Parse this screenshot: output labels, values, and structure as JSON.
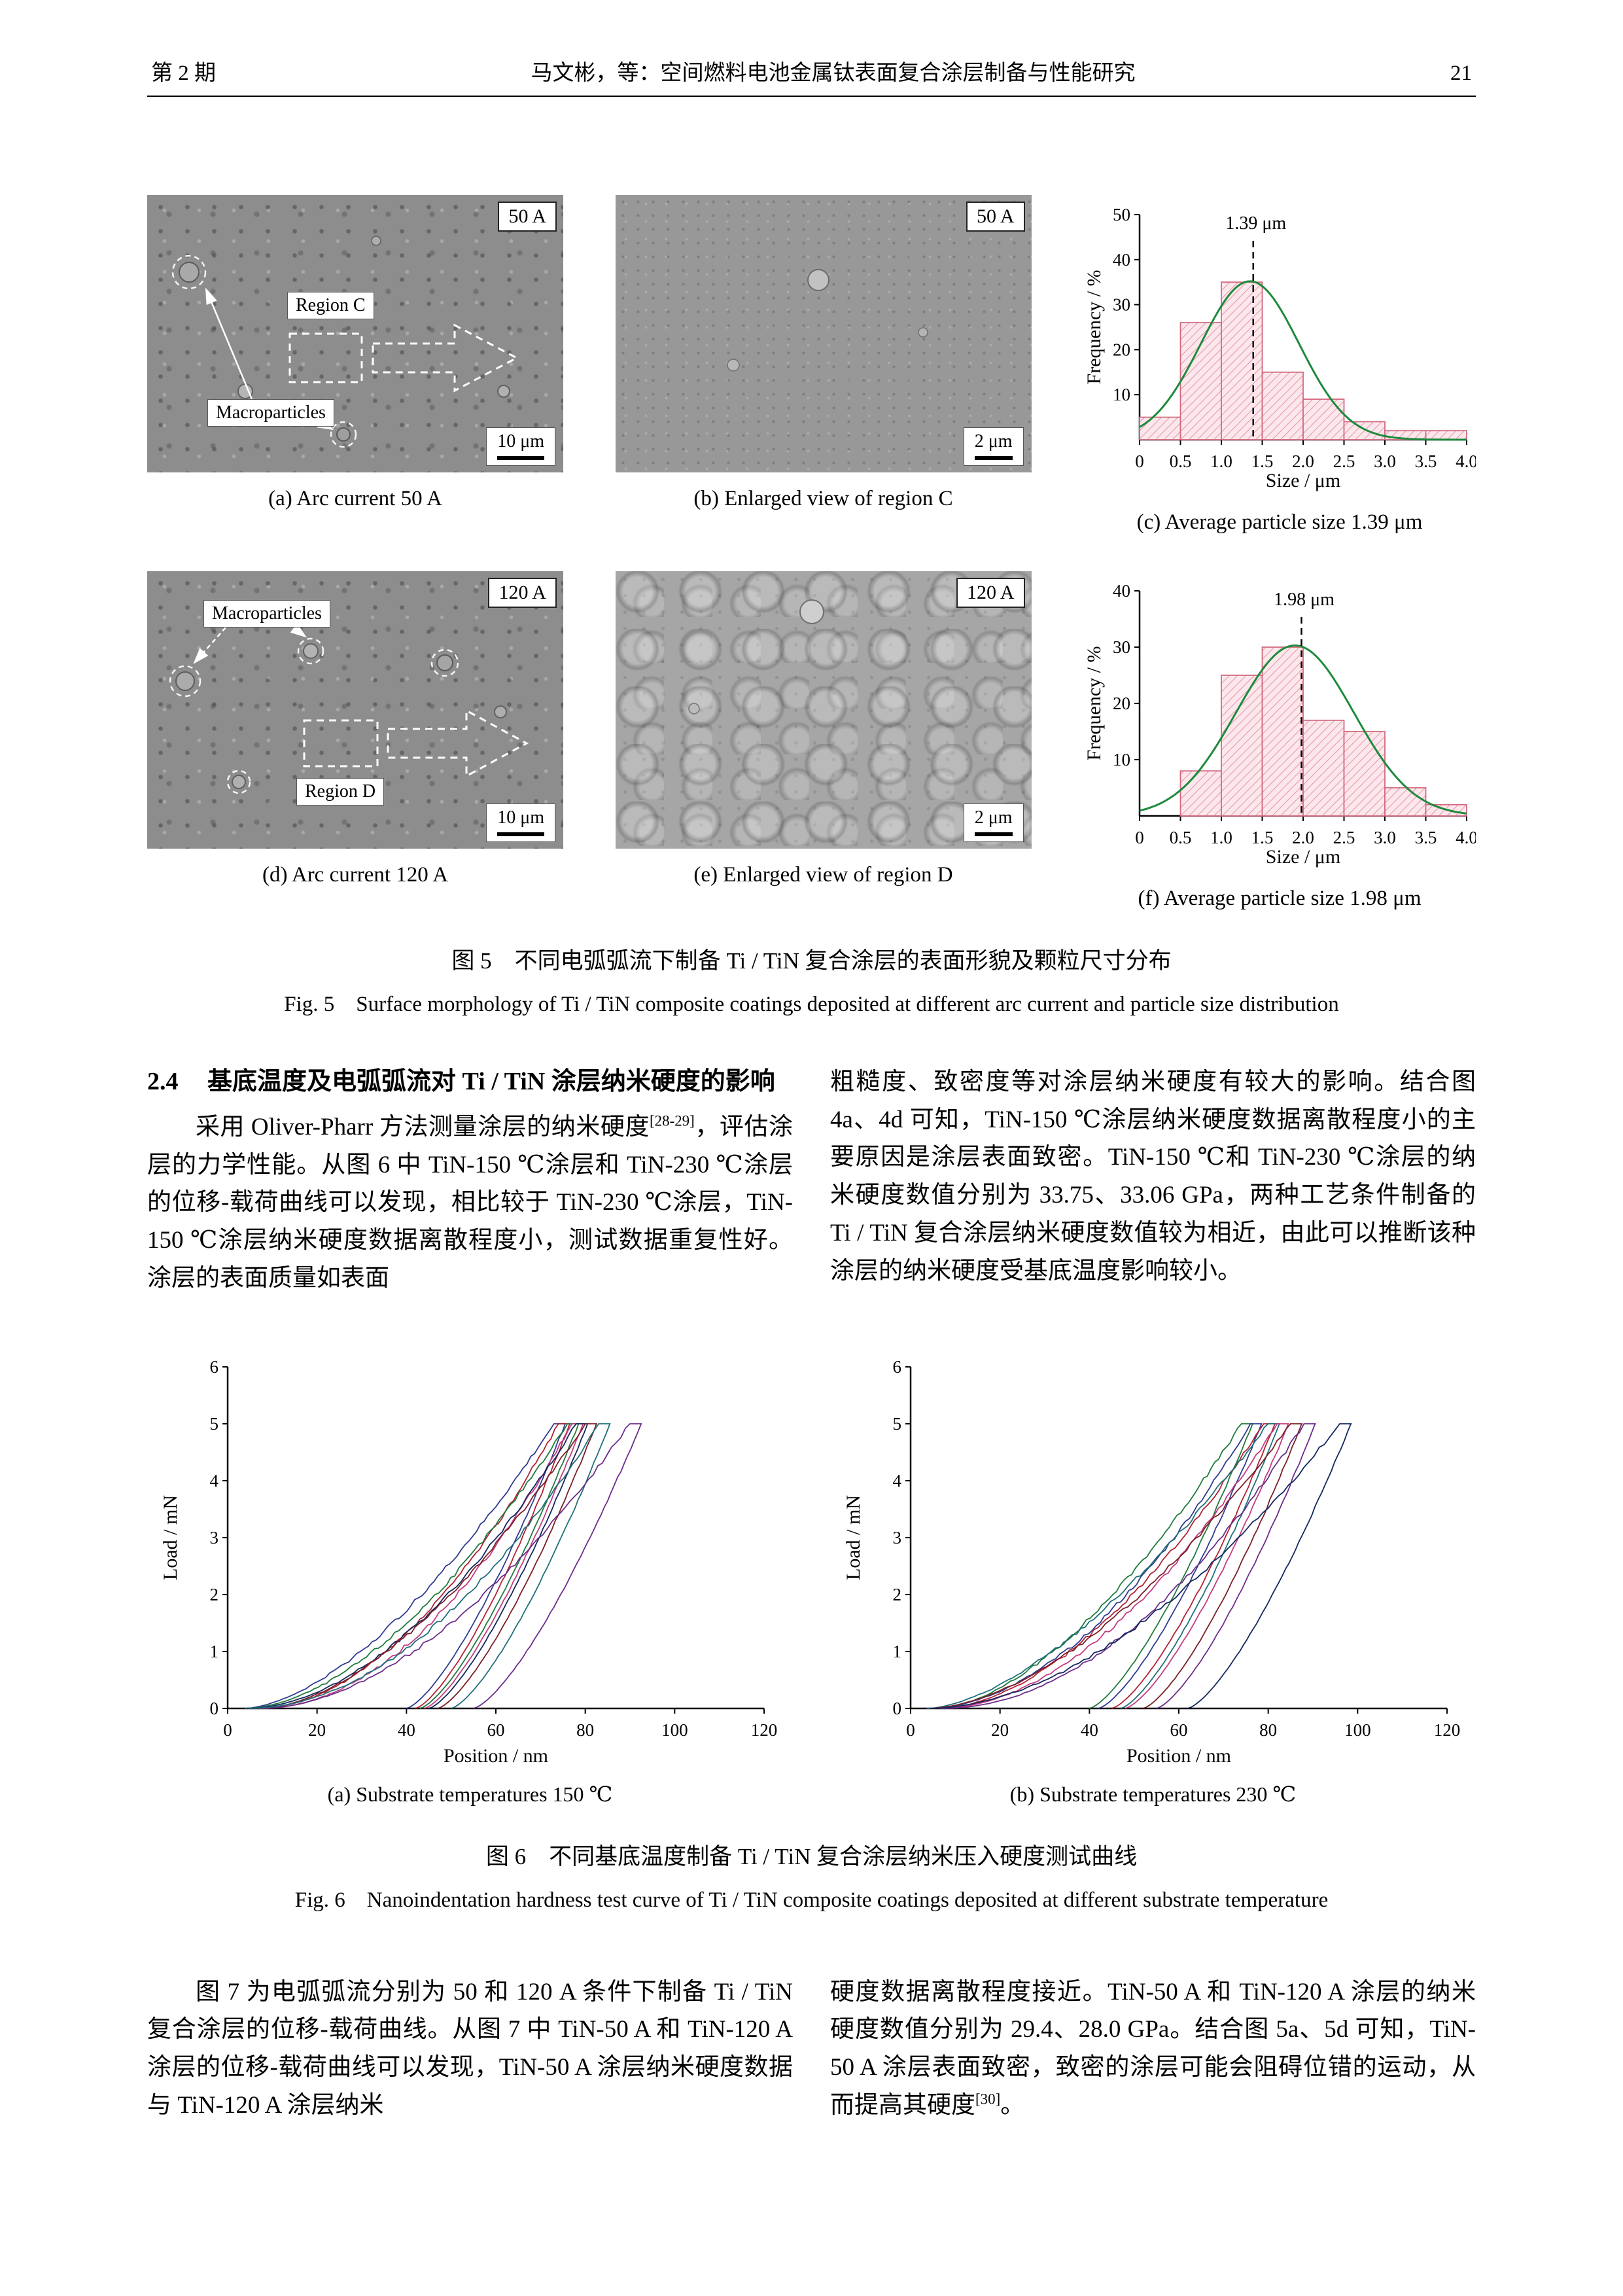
{
  "header": {
    "issue": "第 2 期",
    "title": "马文彬，等：空间燃料电池金属钛表面复合涂层制备与性能研究",
    "page": "21"
  },
  "fig5": {
    "a": {
      "tag": "50 A",
      "region": "Region C",
      "macro": "Macroparticles",
      "scale": "10 μm",
      "caption": "(a) Arc current 50 A"
    },
    "b": {
      "tag": "50 A",
      "scale": "2 μm",
      "caption": "(b) Enlarged view of region C"
    },
    "c": {
      "caption": "(c) Average particle size 1.39 μm"
    },
    "d": {
      "tag": "120 A",
      "region": "Region D",
      "macro": "Macroparticles",
      "scale": "10 μm",
      "caption": "(d) Arc current 120 A"
    },
    "e": {
      "tag": "120 A",
      "scale": "2 μm",
      "caption": "(e) Enlarged view of region D"
    },
    "f": {
      "caption": "(f) Average particle size 1.98 μm"
    },
    "caption_zh": "图 5　不同电弧弧流下制备 Ti / TiN 复合涂层的表面形貌及颗粒尺寸分布",
    "caption_en": "Fig. 5　Surface morphology of Ti / TiN composite coatings deposited at different arc current and particle size distribution"
  },
  "section24": {
    "num": "2.4",
    "title": "基底温度及电弧弧流对 Ti / TiN 涂层纳米硬度的影响"
  },
  "paras": {
    "p1": [
      {
        "t": "采用 Oliver-Pharr 方法测量涂层的纳米硬度"
      },
      {
        "t": "[28-29]",
        "sup": true
      },
      {
        "t": "，评估涂层的力学性能。从图 6 中 TiN-150 ℃涂层和 TiN-230 ℃涂层的位移-载荷曲线可以发现，相比较于 TiN-230 ℃涂层，TiN-150 ℃涂层纳米硬度数据离散程度小，测试数据重复性好。涂层的表面质量如表面"
      }
    ],
    "p2": [
      {
        "t": "粗糙度、致密度等对涂层纳米硬度有较大的影响。结合图 4a、4d 可知，TiN-150 ℃涂层纳米硬度数据离散程度小的主要原因是涂层表面致密。TiN-150 ℃和 TiN-230 ℃涂层的纳米硬度数值分别为 33.75、33.06 GPa，两种工艺条件制备的 Ti / TiN 复合涂层纳米硬度数值较为相近，由此可以推断该种涂层的纳米硬度受基底温度影响较小。"
      }
    ],
    "p3": [
      {
        "t": "图 7 为电弧弧流分别为 50 和 120 A 条件下制备 Ti / TiN 复合涂层的位移-载荷曲线。从图 7 中 TiN-50 A 和 TiN-120 A 涂层的位移-载荷曲线可以发现，TiN-50 A 涂层纳米硬度数据与 TiN-120 A 涂层纳米"
      }
    ],
    "p4": [
      {
        "t": "硬度数据离散程度接近。TiN-50 A 和 TiN-120 A 涂层的纳米硬度数值分别为 29.4、28.0 GPa。结合图 5a、5d 可知，TiN-50 A 涂层表面致密，致密的涂层可能会阻碍位错的运动，从而提高其硬度"
      },
      {
        "t": "[30]",
        "sup": true
      },
      {
        "t": "。"
      }
    ]
  },
  "fig6": {
    "a_caption": "(a) Substrate temperatures 150 ℃",
    "b_caption": "(b) Substrate temperatures 230 ℃",
    "caption_zh": "图 6　不同基底温度制备 Ti / TiN 复合涂层纳米压入硬度测试曲线",
    "caption_en": "Fig. 6　Nanoindentation hardness test curve of Ti / TiN composite coatings deposited at different substrate temperature"
  },
  "colors": {
    "hist_fill": "#fce8ec",
    "hist_hatch": "#e79aab",
    "hist_edge": "#d16a80",
    "curve_green": "#1d8a3c"
  },
  "chart_data": [
    {
      "id": "hist-139",
      "type": "bar",
      "annotation": "1.39 μm",
      "mean": 1.39,
      "bin_width": 0.5,
      "bin_starts": [
        0,
        0.5,
        1.0,
        1.5,
        2.0,
        2.5,
        3.0,
        3.5
      ],
      "values": [
        5,
        26,
        35,
        15,
        9,
        4,
        2,
        2
      ],
      "curve": {
        "type": "gaussian",
        "mu": 1.35,
        "sigma": 0.6,
        "amp": 35.2
      },
      "xlabel": "Size / μm",
      "ylabel": "Frequency / %",
      "xlim": [
        0,
        4.0
      ],
      "ylim": [
        0,
        50
      ],
      "xticks": [
        0,
        0.5,
        1.0,
        1.5,
        2.0,
        2.5,
        3.0,
        3.5,
        4.0
      ],
      "yticks": [
        10,
        20,
        30,
        40,
        50
      ]
    },
    {
      "id": "hist-198",
      "type": "bar",
      "annotation": "1.98 μm",
      "mean": 1.98,
      "bin_width": 0.5,
      "bin_starts": [
        0,
        0.5,
        1.0,
        1.5,
        2.0,
        2.5,
        3.0,
        3.5
      ],
      "values": [
        0,
        8,
        25,
        30,
        17,
        15,
        5,
        2
      ],
      "curve": {
        "type": "gaussian",
        "mu": 1.9,
        "sigma": 0.72,
        "amp": 30.3
      },
      "xlabel": "Size / μm",
      "ylabel": "Frequency / %",
      "xlim": [
        0,
        4.0
      ],
      "ylim": [
        0,
        40
      ],
      "xticks": [
        0,
        0.5,
        1.0,
        1.5,
        2.0,
        2.5,
        3.0,
        3.5,
        4.0
      ],
      "yticks": [
        10,
        20,
        30,
        40
      ]
    },
    {
      "id": "load-150",
      "type": "line",
      "xlabel": "Position / nm",
      "ylabel": "Load / mN",
      "xlim": [
        0,
        120
      ],
      "ylim": [
        0,
        6
      ],
      "xticks": [
        0,
        20,
        40,
        60,
        80,
        100,
        120
      ],
      "yticks": [
        0,
        1,
        2,
        3,
        4,
        5,
        6
      ],
      "peak_load_mN": 5,
      "series": [
        {
          "color": "#2f3b8f",
          "max_nm": 73,
          "residual_nm": 40
        },
        {
          "color": "#b22234",
          "max_nm": 74,
          "residual_nm": 42
        },
        {
          "color": "#1f7a3c",
          "max_nm": 76,
          "residual_nm": 43
        },
        {
          "color": "#c23b80",
          "max_nm": 77,
          "residual_nm": 44
        },
        {
          "color": "#13275e",
          "max_nm": 78,
          "residual_nm": 45
        },
        {
          "color": "#7a1f28",
          "max_nm": 80,
          "residual_nm": 47
        },
        {
          "color": "#1f6f7a",
          "max_nm": 83,
          "residual_nm": 50
        },
        {
          "color": "#6b2d8b",
          "max_nm": 90,
          "residual_nm": 55
        }
      ]
    },
    {
      "id": "load-230",
      "type": "line",
      "xlabel": "Position / nm",
      "ylabel": "Load / mN",
      "xlim": [
        0,
        120
      ],
      "ylim": [
        0,
        6
      ],
      "xticks": [
        0,
        20,
        40,
        60,
        80,
        100,
        120
      ],
      "yticks": [
        0,
        1,
        2,
        3,
        4,
        5,
        6
      ],
      "peak_load_mN": 5,
      "series": [
        {
          "color": "#1f7a3c",
          "max_nm": 74,
          "residual_nm": 40
        },
        {
          "color": "#2f3b8f",
          "max_nm": 76,
          "residual_nm": 42
        },
        {
          "color": "#b22234",
          "max_nm": 79,
          "residual_nm": 45
        },
        {
          "color": "#1f6f7a",
          "max_nm": 80,
          "residual_nm": 47
        },
        {
          "color": "#c23b80",
          "max_nm": 82,
          "residual_nm": 48
        },
        {
          "color": "#7a1f28",
          "max_nm": 85,
          "residual_nm": 52
        },
        {
          "color": "#6b2d8b",
          "max_nm": 88,
          "residual_nm": 55
        },
        {
          "color": "#13275e",
          "max_nm": 96,
          "residual_nm": 62
        }
      ]
    }
  ]
}
